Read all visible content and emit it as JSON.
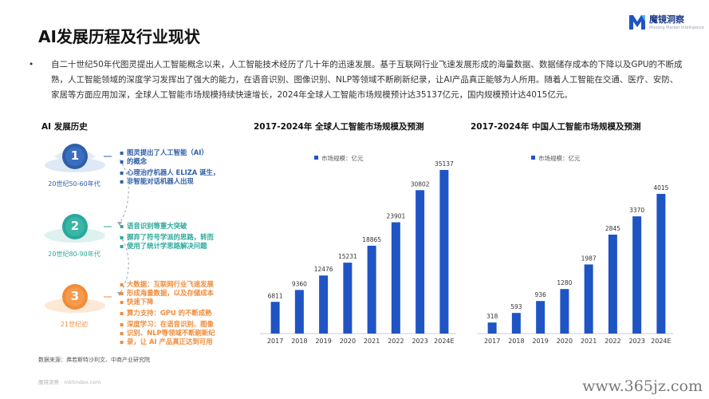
{
  "page_title": "AI发展历程及行业现状",
  "logo": {
    "name": "魔镜洞察",
    "subtitle": "Moojing Market Intelligence"
  },
  "intro": {
    "bullet": "•",
    "text": "自二十世纪50年代图灵提出人工智能概念以来，人工智能技术经历了几十年的迅速发展。基于互联网行业飞速发展形成的海量数据、数据储存成本的下降以及GPU的不断成熟，人工智能领域的深度学习发挥出了强大的能力，在语音识别、图像识别、NLP等领域不断刷新纪录，让AI产品真正能够为人所用。随着人工智能在交通、医疗、安防、家居等方面应用加深，全球人工智能市场规模持续快速增长，2024年全球人工智能市场规模预计达35137亿元，国内规模预计达4015亿元。"
  },
  "history": {
    "title": "AI 发展历史",
    "colors": [
      "#2f5fa8",
      "#2aa89a",
      "#f08c3a"
    ],
    "stages": [
      {
        "num": "1",
        "years": "20世纪50-60年代",
        "items": [
          "图灵提出了人工智能（AI）",
          "的概念",
          "心理治疗机器人 ELIZA 诞生，",
          "非智能对话机器人出现"
        ]
      },
      {
        "num": "2",
        "years": "20世纪80-90年代",
        "items": [
          "语音识别等重大突破",
          "摒弃了符号学派的思路，转而",
          "使用了统计学思路解决问题"
        ]
      },
      {
        "num": "3",
        "years": "21世纪初",
        "items": [
          "大数据：互联网行业飞速发展",
          "形成海量数据，以及存储成本",
          "快速下降",
          "算力支持：GPU 的不断成熟",
          "深度学习：在语音识别、图像",
          "识别、NLP等领域不断刷新纪",
          "录，让 AI 产品真正达到可用"
        ]
      }
    ]
  },
  "chart_data": [
    {
      "type": "bar",
      "title": "2017-2024年 全球人工智能市场规模及预测",
      "legend": "市场规模：亿元",
      "color": "#1f54c4",
      "categories": [
        "2017",
        "2018",
        "2019",
        "2020",
        "2021",
        "2022",
        "2023",
        "2024E"
      ],
      "values": [
        6811,
        9360,
        12476,
        15231,
        18865,
        23901,
        30802,
        35137
      ]
    },
    {
      "type": "bar",
      "title": "2017-2024年 中国人工智能市场规模及预测",
      "legend": "市场规模：亿元",
      "color": "#1f54c4",
      "categories": [
        "2017",
        "2018",
        "2019",
        "2020",
        "2021",
        "2022",
        "2023",
        "2024E"
      ],
      "values": [
        318,
        593,
        936,
        1280,
        1987,
        2845,
        3370,
        4015
      ]
    }
  ],
  "source": "数据来源：弗若斯特沙利文、中商产业研究院",
  "footer_left": "魔镜洞察 · mktindex.com",
  "watermark": "www.365jz.com"
}
